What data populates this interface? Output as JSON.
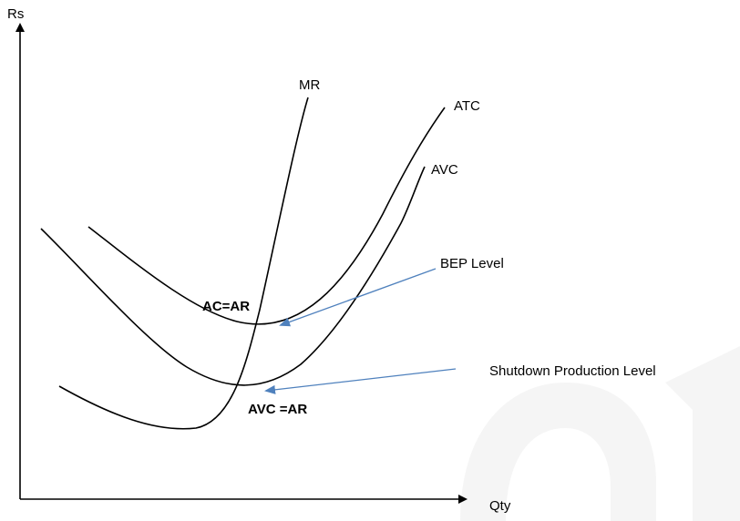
{
  "axes": {
    "y_label": "Rs",
    "x_label": "Qty"
  },
  "curves": {
    "mr": "MR",
    "atc": "ATC",
    "avc": "AVC"
  },
  "points": {
    "ac_ar": "AC=AR",
    "avc_ar": "AVC =AR"
  },
  "callouts": {
    "bep": "BEP Level",
    "shutdown": "Shutdown Production Level"
  },
  "colors": {
    "curves": "#000000",
    "pointer": "#4f81bd",
    "watermark": "#ececec"
  }
}
